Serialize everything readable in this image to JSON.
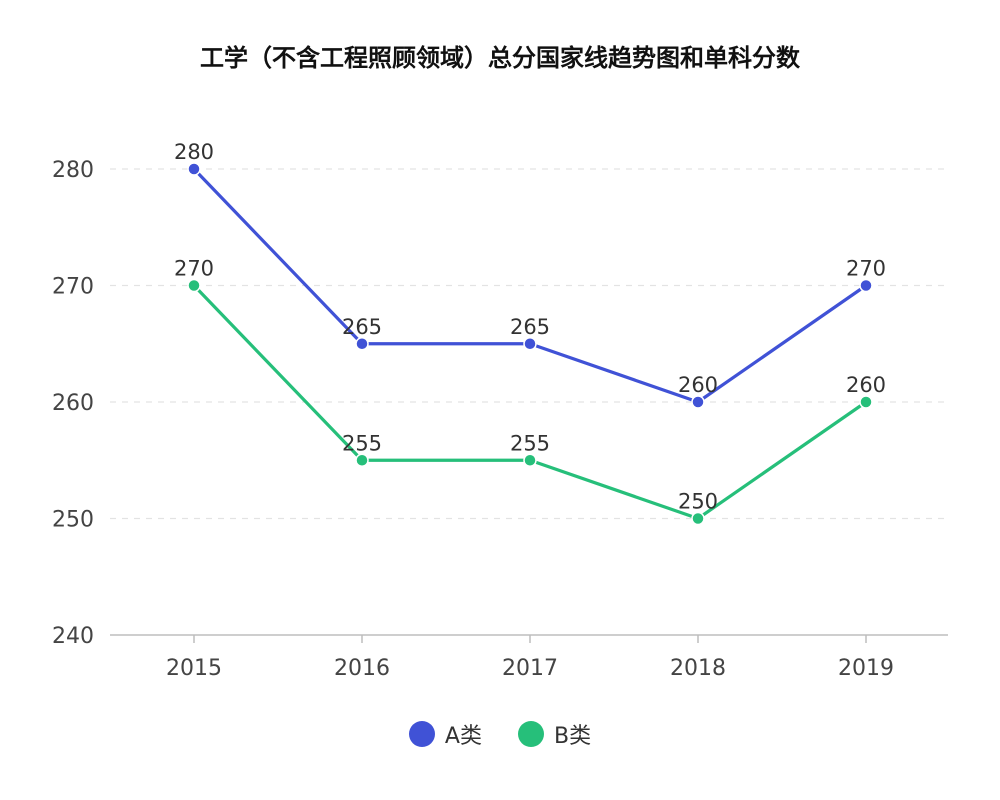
{
  "chart_data": {
    "type": "line",
    "title": "工学（不含工程照顾领域）总分国家线趋势图和单科分数",
    "categories": [
      "2015",
      "2016",
      "2017",
      "2018",
      "2019"
    ],
    "series": [
      {
        "name": "A类",
        "color": "#4052d6",
        "values": [
          280,
          265,
          265,
          260,
          270
        ]
      },
      {
        "name": "B类",
        "color": "#26bf7a",
        "values": [
          270,
          255,
          255,
          250,
          260
        ]
      }
    ],
    "y_ticks": [
      "240",
      "250",
      "260",
      "270",
      "280"
    ],
    "ylim": [
      240,
      285
    ],
    "grid": true,
    "legend_position": "bottom-center"
  }
}
